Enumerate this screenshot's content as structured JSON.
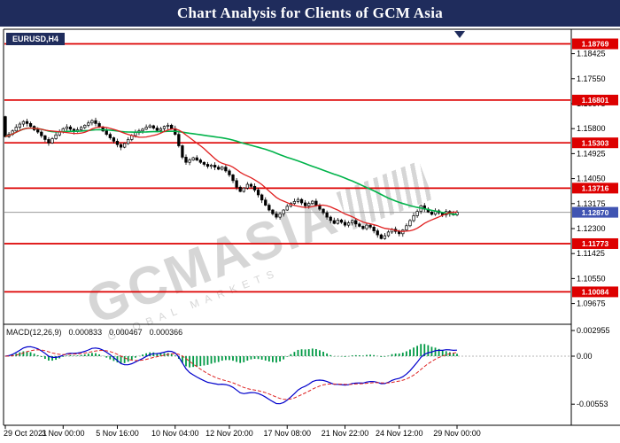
{
  "title_bar": {
    "title": "Chart Analysis for Clients of GCM Asia"
  },
  "chart": {
    "symbol_label": "EURUSD,H4",
    "watermark": {
      "main": "GCMASIA",
      "sub": "GLOBAL MARKETS"
    },
    "macd_label": {
      "name": "MACD(12,26,9)",
      "values": [
        "0.000833",
        "0.000467",
        "0.000366"
      ]
    }
  },
  "chart_data": {
    "type": "candlestick",
    "title": "Chart Analysis for Clients of GCM Asia",
    "symbol": "EURUSD",
    "timeframe": "H4",
    "ylim": [
      1.089,
      1.1925
    ],
    "grid": false,
    "legend": "none",
    "price_axis_ticks": [
      "1.18425",
      "1.17550",
      "1.16675",
      "1.15800",
      "1.14925",
      "1.14050",
      "1.13175",
      "1.12300",
      "1.11425",
      "1.10550",
      "1.09675"
    ],
    "time_axis_labels": [
      {
        "label": "29 Oct 2021",
        "bar": 0
      },
      {
        "label": "3 Nov 00:00",
        "bar": 16
      },
      {
        "label": "5 Nov 16:00",
        "bar": 31
      },
      {
        "label": "10 Nov 04:00",
        "bar": 47
      },
      {
        "label": "12 Nov 20:00",
        "bar": 62
      },
      {
        "label": "17 Nov 08:00",
        "bar": 78
      },
      {
        "label": "21 Nov 22:00",
        "bar": 94
      },
      {
        "label": "24 Nov 12:00",
        "bar": 109
      },
      {
        "label": "29 Nov 00:00",
        "bar": 125
      }
    ],
    "levels": [
      {
        "price": 1.18769,
        "label": "1.18769"
      },
      {
        "price": 1.16801,
        "label": "1.16801"
      },
      {
        "price": 1.15303,
        "label": "1.15303"
      },
      {
        "price": 1.13716,
        "label": "1.13716"
      },
      {
        "price": 1.11773,
        "label": "1.11773"
      },
      {
        "price": 1.10084,
        "label": "1.10084"
      }
    ],
    "current_price": {
      "price": 1.1287,
      "label": "1.12870"
    },
    "first_open": 1.1622,
    "closes": [
      1.1552,
      1.156,
      1.1572,
      1.1585,
      1.1596,
      1.1605,
      1.1598,
      1.1588,
      1.1576,
      1.1568,
      1.1555,
      1.1542,
      1.153,
      1.1545,
      1.1558,
      1.157,
      1.158,
      1.1586,
      1.1578,
      1.157,
      1.1576,
      1.1584,
      1.1592,
      1.16,
      1.1608,
      1.1598,
      1.1585,
      1.1572,
      1.156,
      1.1548,
      1.1536,
      1.1524,
      1.1515,
      1.1528,
      1.1542,
      1.1556,
      1.1566,
      1.1572,
      1.1578,
      1.1585,
      1.159,
      1.1582,
      1.1574,
      1.158,
      1.1588,
      1.1592,
      1.158,
      1.156,
      1.152,
      1.148,
      1.1462,
      1.147,
      1.1478,
      1.147,
      1.1462,
      1.1455,
      1.1448,
      1.1452,
      1.1445,
      1.1438,
      1.1445,
      1.1432,
      1.1418,
      1.1398,
      1.1375,
      1.136,
      1.1372,
      1.1385,
      1.1378,
      1.1365,
      1.1348,
      1.133,
      1.1312,
      1.1295,
      1.1282,
      1.127,
      1.1282,
      1.1295,
      1.1308,
      1.1318,
      1.1325,
      1.1332,
      1.132,
      1.131,
      1.1318,
      1.1326,
      1.1312,
      1.1298,
      1.1285,
      1.127,
      1.1258,
      1.1248,
      1.126,
      1.1252,
      1.1242,
      1.125,
      1.1258,
      1.1246,
      1.1238,
      1.123,
      1.1242,
      1.1235,
      1.1222,
      1.1208,
      1.1195,
      1.1205,
      1.1218,
      1.1228,
      1.122,
      1.1212,
      1.1225,
      1.124,
      1.1258,
      1.1275,
      1.129,
      1.131,
      1.1298,
      1.1288,
      1.128,
      1.1292,
      1.1285,
      1.1278,
      1.129,
      1.1282,
      1.1278,
      1.1287
    ],
    "overlays": [
      {
        "name": "sma-slow",
        "period": 60,
        "color": "#00b34a"
      },
      {
        "name": "sma-fast",
        "period": 12,
        "color": "#e02020"
      }
    ],
    "macd": {
      "params": [
        12,
        26,
        9
      ],
      "readout": [
        0.000833,
        0.000467,
        0.000366
      ],
      "axis_ticks": [
        {
          "label": "0.002955",
          "value": 0.002955
        },
        {
          "label": "0.00",
          "value": 0
        },
        {
          "label": "-0.00553",
          "value": -0.00553
        }
      ]
    },
    "colors": {
      "title_bg": "#1f2c5c",
      "level": "#dd0000",
      "current_badge": "#4054b2",
      "ma_slow": "#00b34a",
      "ma_fast": "#e02020",
      "macd_line": "#0000cc",
      "macd_signal": "#dd2222",
      "macd_hist": "#009944"
    }
  }
}
